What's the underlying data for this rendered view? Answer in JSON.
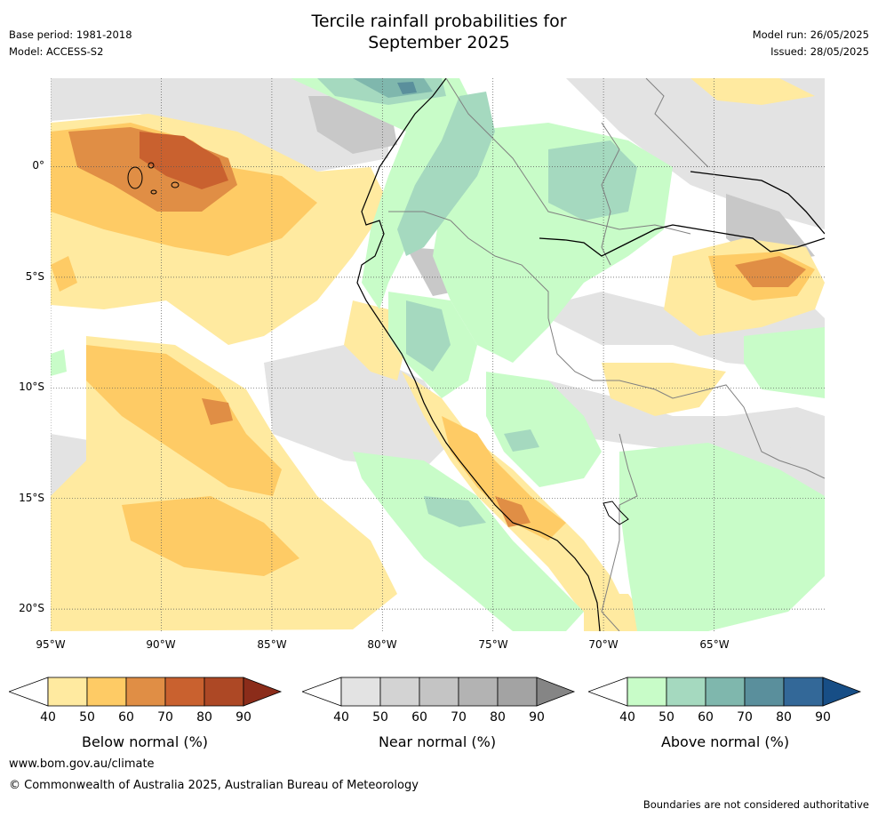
{
  "header": {
    "title_line1": "Tercile rainfall probabilities for",
    "title_line2": "September 2025",
    "base_period": "Base period: 1981-2018",
    "model": "Model: ACCESS-S2",
    "model_run": "Model run: 26/05/2025",
    "issued": "Issued: 28/05/2025"
  },
  "map": {
    "lat_ticks": [
      "0°",
      "5°S",
      "10°S",
      "15°S",
      "20°S"
    ],
    "lon_ticks": [
      "95°W",
      "90°W",
      "85°W",
      "80°W",
      "75°W",
      "70°W",
      "65°W"
    ],
    "extent": {
      "lon_min": -95,
      "lon_max": -60,
      "lat_min": -21,
      "lat_max": 4
    }
  },
  "legends": [
    {
      "label": "Below normal (%)",
      "ticks": [
        "40",
        "50",
        "60",
        "70",
        "80",
        "90"
      ],
      "colors": [
        "#ffeaa0",
        "#fecb65",
        "#e08e45",
        "#c9612f",
        "#ad4825",
        "#8b2c1a"
      ]
    },
    {
      "label": "Near normal (%)",
      "ticks": [
        "40",
        "50",
        "60",
        "70",
        "80",
        "90"
      ],
      "colors": [
        "#e3e3e3",
        "#d3d3d3",
        "#c4c4c4",
        "#b3b3b3",
        "#a3a3a3",
        "#858585"
      ]
    },
    {
      "label": "Above normal (%)",
      "ticks": [
        "40",
        "50",
        "60",
        "70",
        "80",
        "90"
      ],
      "colors": [
        "#c8fcc8",
        "#a5d9bf",
        "#7fb7ad",
        "#5a8f9c",
        "#336898",
        "#174e86"
      ]
    }
  ],
  "footer": {
    "website": "www.bom.gov.au/climate",
    "copyright": "© Commonwealth of Australia 2025, Australian Bureau of Meteorology",
    "disclaimer": "Boundaries are not considered authoritative"
  }
}
